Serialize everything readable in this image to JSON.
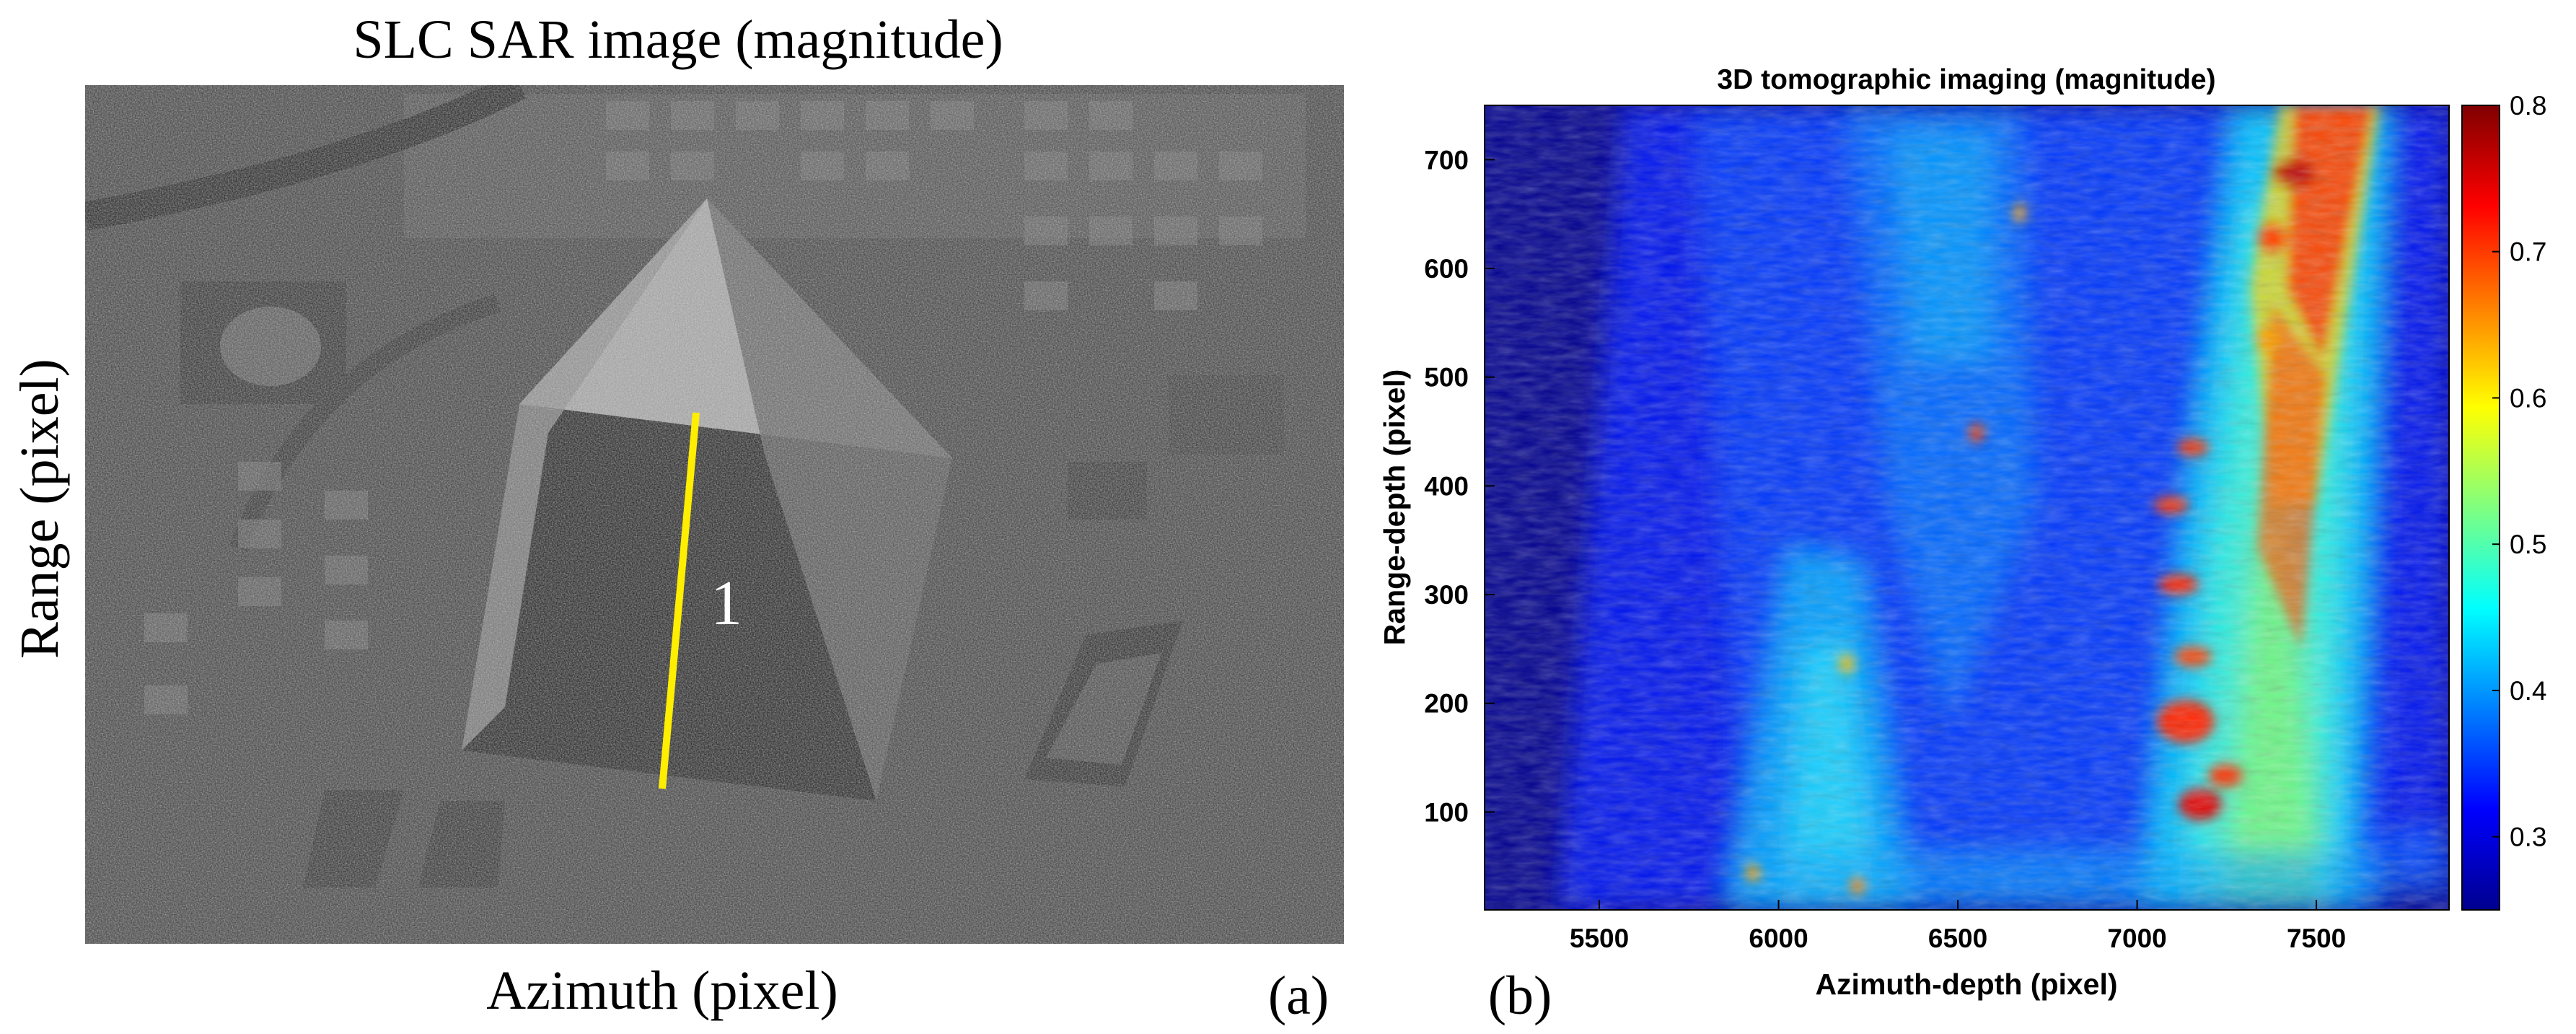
{
  "panel_a": {
    "title": "SLC SAR image (magnitude)",
    "xlabel": "Azimuth (pixel)",
    "ylabel": "Range (pixel)",
    "panel_label": "(a)",
    "line_label": "1",
    "line_color": "#ffee00"
  },
  "panel_b": {
    "panel_label": "(b)"
  },
  "chart_data": {
    "type": "heatmap",
    "title": "3D tomographic imaging (magnitude)",
    "xlabel": "Azimuth-depth (pixel)",
    "ylabel": "Range-depth (pixel)",
    "xlim": [
      5180,
      7870
    ],
    "ylim": [
      750,
      10
    ],
    "xticks": [
      5500,
      6000,
      6500,
      7000,
      7500
    ],
    "yticks": [
      100,
      200,
      300,
      400,
      500,
      600,
      700
    ],
    "colorbar": {
      "range": [
        0.25,
        0.8
      ],
      "ticks": [
        0.3,
        0.4,
        0.5,
        0.6,
        0.7,
        0.8
      ],
      "colormap": "jet"
    }
  }
}
